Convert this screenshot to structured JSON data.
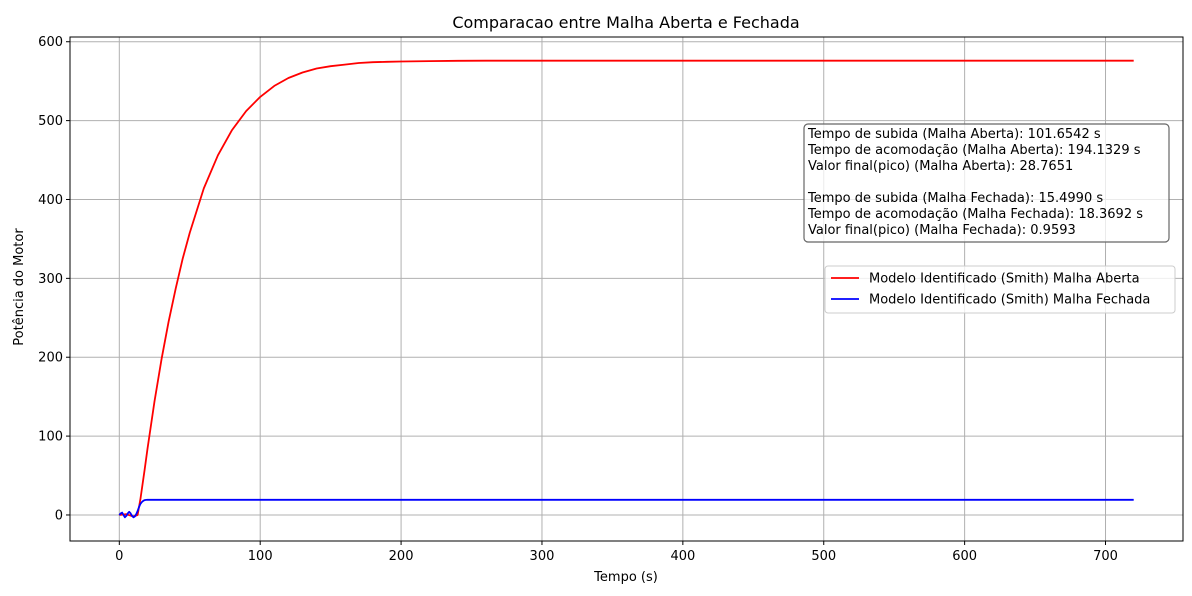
{
  "chart_data": {
    "type": "line",
    "title": "Comparacao entre Malha Aberta e Fechada",
    "xlabel": "Tempo (s)",
    "ylabel": "Potência do Motor",
    "xlim": [
      -35,
      755
    ],
    "ylim": [
      -33,
      606
    ],
    "xticks": [
      0,
      100,
      200,
      300,
      400,
      500,
      600,
      700
    ],
    "yticks": [
      0,
      100,
      200,
      300,
      400,
      500,
      600
    ],
    "grid": true,
    "legend_position": "center-right",
    "series": [
      {
        "name": "Modelo Identificado (Smith) Malha Aberta",
        "color": "#ff0000",
        "x": [
          0,
          5,
          10,
          13,
          15,
          18,
          20,
          25,
          30,
          35,
          40,
          45,
          50,
          60,
          70,
          80,
          90,
          100,
          110,
          120,
          130,
          140,
          150,
          160,
          170,
          180,
          190,
          200,
          220,
          240,
          260,
          280,
          300,
          350,
          400,
          500,
          600,
          720
        ],
        "y": [
          0,
          1,
          -2,
          0,
          20,
          58,
          84,
          144,
          198,
          245,
          287,
          325,
          358,
          414,
          456,
          488,
          512,
          530,
          544,
          554,
          561,
          566,
          569,
          571,
          573,
          574,
          574.5,
          575,
          575.5,
          575.8,
          576,
          576,
          576,
          576,
          576,
          576,
          576,
          576
        ]
      },
      {
        "name": "Modelo Identificado (Smith) Malha Fechada",
        "color": "#0000ff",
        "x": [
          0,
          1,
          2,
          3,
          4,
          5,
          6,
          7,
          8,
          9,
          10,
          11,
          12,
          13,
          14,
          15,
          16,
          17,
          18,
          19,
          20,
          22,
          25,
          30,
          720
        ],
        "y": [
          0,
          2,
          3,
          0,
          -3,
          -1,
          2,
          4,
          2,
          -1,
          -3,
          -2,
          1,
          5,
          10,
          14,
          16.5,
          18,
          18.8,
          19.1,
          19.2,
          19.2,
          19.2,
          19.2,
          19.2
        ]
      }
    ],
    "annotation_lines": [
      "Tempo de subida (Malha Aberta): 101.6542 s",
      "Tempo de acomodação (Malha Aberta): 194.1329 s",
      "Valor final(pico) (Malha Aberta): 28.7651",
      "",
      "Tempo de subida (Malha Fechada): 15.4990 s",
      "Tempo de acomodação (Malha Fechada): 18.3692 s",
      "Valor final(pico) (Malha Fechada): 0.9593"
    ],
    "annotation_position": "upper-right"
  }
}
